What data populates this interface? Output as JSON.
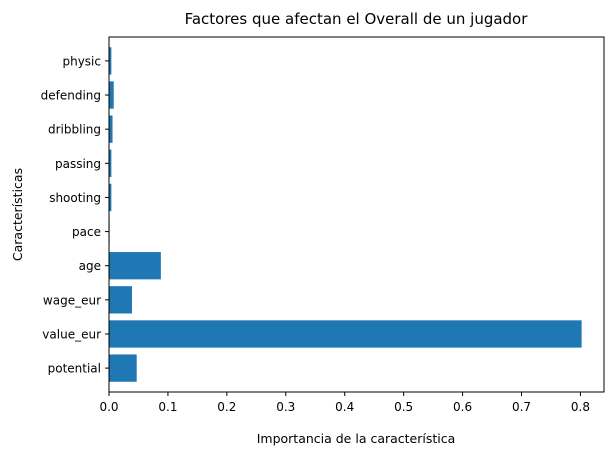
{
  "chart_data": {
    "type": "bar",
    "orientation": "horizontal",
    "title": "Factores que afectan el Overall de un jugador",
    "xlabel": "Importancia de la característica",
    "ylabel": "Características",
    "categories": [
      "potential",
      "value_eur",
      "wage_eur",
      "age",
      "pace",
      "shooting",
      "passing",
      "dribbling",
      "defending",
      "physic"
    ],
    "values": [
      0.047,
      0.802,
      0.039,
      0.088,
      0.001,
      0.004,
      0.004,
      0.006,
      0.008,
      0.004
    ],
    "xlim": [
      0,
      0.84
    ],
    "xticks": [
      0.0,
      0.1,
      0.2,
      0.3,
      0.4,
      0.5,
      0.6,
      0.7,
      0.8
    ],
    "xtick_labels": [
      "0.0",
      "0.1",
      "0.2",
      "0.3",
      "0.4",
      "0.5",
      "0.6",
      "0.7",
      "0.8"
    ],
    "grid": false,
    "bar_color": "#1f77b4"
  }
}
